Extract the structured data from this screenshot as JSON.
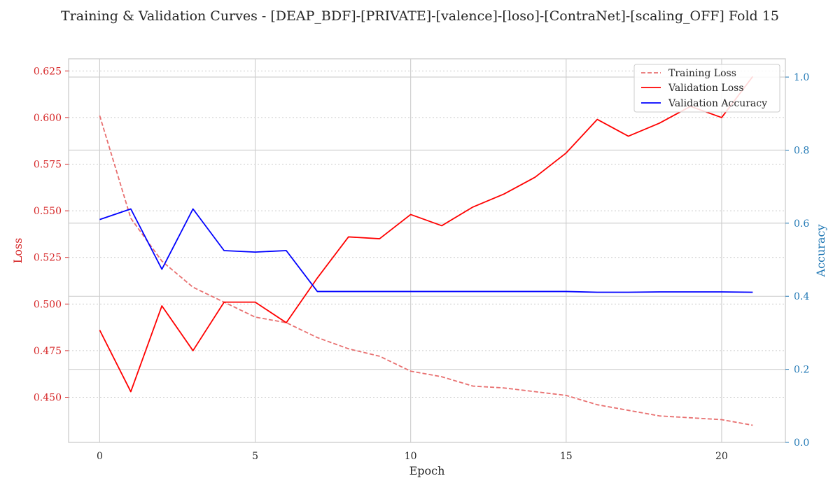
{
  "chart_data": {
    "type": "line",
    "title": "Training & Validation Curves - [DEAP_BDF]-[PRIVATE]-[valence]-[loso]-[ContraNet]-[scaling_OFF] Fold 15",
    "xlabel": "Epoch",
    "ylabel_left": "Loss",
    "ylabel_right": "Accuracy",
    "xlim": [
      -1,
      22.05
    ],
    "ylim_left": [
      0.4258,
      0.6315
    ],
    "ylim_right": [
      0.0,
      1.05
    ],
    "xticks": [
      0,
      5,
      10,
      15,
      20
    ],
    "yticks_left": [
      0.45,
      0.475,
      0.5,
      0.525,
      0.55,
      0.575,
      0.6,
      0.625
    ],
    "yticks_right": [
      0.0,
      0.2,
      0.4,
      0.6,
      0.8,
      1.0
    ],
    "x": [
      0,
      1,
      2,
      3,
      4,
      5,
      6,
      7,
      8,
      9,
      10,
      11,
      12,
      13,
      14,
      15,
      16,
      17,
      18,
      19,
      20,
      21
    ],
    "series": [
      {
        "name": "Training Loss",
        "axis": "left",
        "color": "#e87070",
        "style": "dashed",
        "values": [
          0.601,
          0.546,
          0.523,
          0.509,
          0.501,
          0.493,
          0.49,
          0.482,
          0.476,
          0.472,
          0.464,
          0.461,
          0.456,
          0.455,
          0.453,
          0.451,
          0.446,
          0.443,
          0.44,
          0.439,
          0.438,
          0.435
        ]
      },
      {
        "name": "Validation Loss",
        "axis": "left",
        "color": "#ff0000",
        "style": "solid",
        "values": [
          0.486,
          0.453,
          0.499,
          0.475,
          0.501,
          0.501,
          0.49,
          0.514,
          0.536,
          0.535,
          0.548,
          0.542,
          0.552,
          0.559,
          0.568,
          0.581,
          0.599,
          0.59,
          0.597,
          0.606,
          0.6,
          0.622
        ]
      },
      {
        "name": "Validation Accuracy",
        "axis": "right",
        "color": "#0000ff",
        "style": "solid",
        "values": [
          0.61,
          0.639,
          0.474,
          0.639,
          0.525,
          0.521,
          0.525,
          0.413,
          0.413,
          0.413,
          0.413,
          0.413,
          0.413,
          0.413,
          0.413,
          0.413,
          0.411,
          0.411,
          0.412,
          0.412,
          0.412,
          0.411
        ]
      }
    ],
    "grid": true,
    "legend_position": "top-right",
    "left_axis_color": "#d62728",
    "right_axis_color": "#1f77b4"
  }
}
